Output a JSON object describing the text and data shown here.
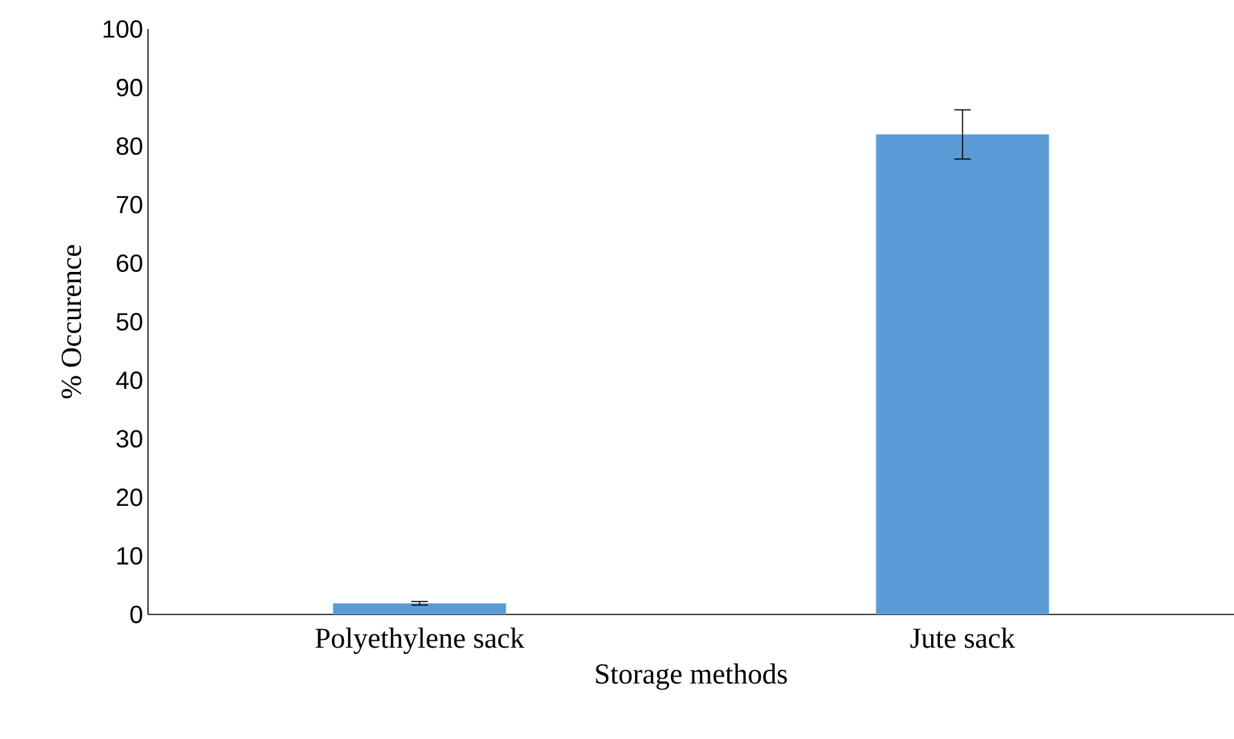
{
  "chart_data": {
    "type": "bar",
    "xlabel": "Storage methods",
    "ylabel": "% Occurence",
    "categories": [
      "Polyethylene sack",
      "Jute sack"
    ],
    "values": [
      1.9,
      82
    ],
    "errors": [
      0.3,
      4.2
    ],
    "color": "#5b9bd5",
    "ylim": [
      0,
      100
    ],
    "yticks": [
      0,
      10,
      20,
      30,
      40,
      50,
      60,
      70,
      80,
      90,
      100
    ]
  }
}
